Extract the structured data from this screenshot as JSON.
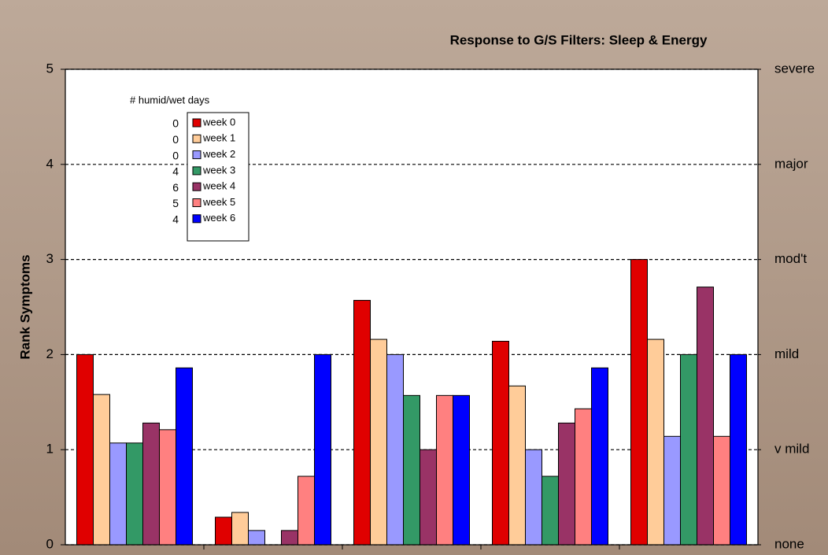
{
  "chart_data": {
    "type": "bar",
    "title": "Response to G/S Filters:  Sleep & Energy",
    "y_label": "Rank Symptoms",
    "categories": [
      null,
      null,
      null,
      null,
      null
    ],
    "series": [
      {
        "name": "week 0",
        "color": "#e00000",
        "values": [
          2.0,
          0.29,
          2.57,
          2.14,
          3.0
        ]
      },
      {
        "name": "week 1",
        "color": "#ffcc99",
        "values": [
          1.58,
          0.34,
          2.16,
          1.67,
          2.16
        ]
      },
      {
        "name": "week 2",
        "color": "#9999ff",
        "values": [
          1.07,
          0.15,
          2.0,
          1.0,
          1.14
        ]
      },
      {
        "name": "week 3",
        "color": "#339966",
        "values": [
          1.07,
          0,
          1.57,
          0.72,
          2.0
        ]
      },
      {
        "name": "week 4",
        "color": "#993366",
        "values": [
          1.28,
          0.15,
          1.0,
          1.28,
          2.71
        ]
      },
      {
        "name": "week 5",
        "color": "#ff8080",
        "values": [
          1.21,
          0.72,
          1.57,
          1.43,
          1.14
        ]
      },
      {
        "name": "week 6",
        "color": "#0000ff",
        "values": [
          1.86,
          2.0,
          1.57,
          1.86,
          2.0
        ]
      }
    ],
    "legend_annotation": {
      "title": "# humid/wet days",
      "values": [
        0,
        0,
        0,
        4,
        6,
        5,
        4
      ]
    },
    "ylim": [
      0,
      5
    ],
    "yticks": [
      0,
      1,
      2,
      3,
      4,
      5
    ],
    "y2lim": [
      0,
      5
    ],
    "y2ticks": [
      {
        "value": 0,
        "label": "none"
      },
      {
        "value": 1,
        "label": "v mild"
      },
      {
        "value": 2,
        "label": "mild"
      },
      {
        "value": 3,
        "label": "mod't"
      },
      {
        "value": 4,
        "label": "major"
      },
      {
        "value": 5,
        "label": "severe"
      }
    ],
    "grid": true
  }
}
